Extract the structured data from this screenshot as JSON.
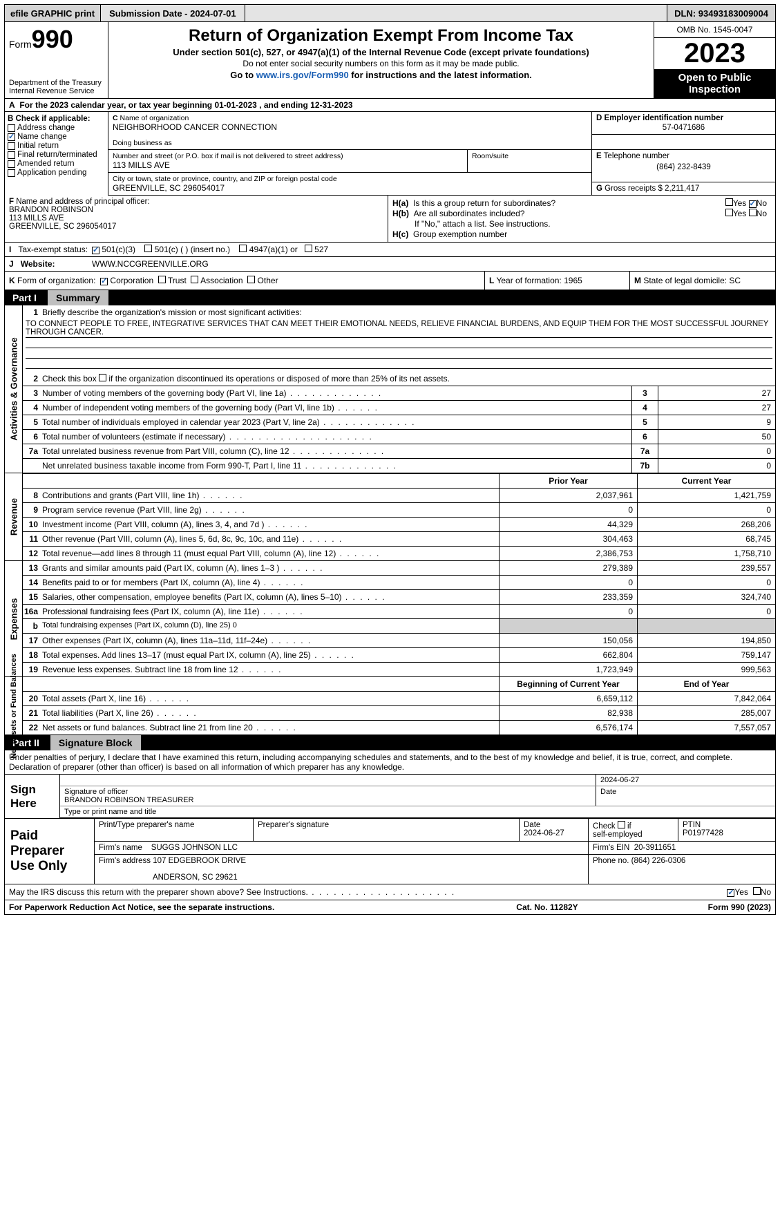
{
  "topbar": {
    "efile": "efile GRAPHIC print",
    "submission": "Submission Date - 2024-07-01",
    "dln": "DLN: 93493183009004"
  },
  "header": {
    "form_label": "Form",
    "form_num": "990",
    "dept": "Department of the Treasury",
    "irs": "Internal Revenue Service",
    "title": "Return of Organization Exempt From Income Tax",
    "sub1": "Under section 501(c), 527, or 4947(a)(1) of the Internal Revenue Code (except private foundations)",
    "sub2": "Do not enter social security numbers on this form as it may be made public.",
    "sub3_pre": "Go to ",
    "sub3_link": "www.irs.gov/Form990",
    "sub3_post": " for instructions and the latest information.",
    "omb": "OMB No. 1545-0047",
    "year": "2023",
    "otp": "Open to Public Inspection"
  },
  "A": {
    "text": "For the 2023 calendar year, or tax year beginning 01-01-2023    , and ending 12-31-2023"
  },
  "B": {
    "label": "Check if applicable:",
    "items": [
      "Address change",
      "Name change",
      "Initial return",
      "Final return/terminated",
      "Amended return",
      "Application pending"
    ]
  },
  "C": {
    "name_label": "Name of organization",
    "name": "NEIGHBORHOOD CANCER CONNECTION",
    "dba_label": "Doing business as",
    "addr_label": "Number and street (or P.O. box if mail is not delivered to street address)",
    "addr": "113 MILLS AVE",
    "room_label": "Room/suite",
    "city_label": "City or town, state or province, country, and ZIP or foreign postal code",
    "city": "GREENVILLE, SC  296054017"
  },
  "D": {
    "label": "Employer identification number",
    "val": "57-0471686"
  },
  "E": {
    "label": "Telephone number",
    "val": "(864) 232-8439"
  },
  "G": {
    "label": "Gross receipts $",
    "val": "2,211,417"
  },
  "F": {
    "label": "Name and address of principal officer:",
    "name": "BRANDON ROBINSON",
    "addr": "113 MILLS AVE",
    "city": "GREENVILLE, SC  296054017"
  },
  "H": {
    "a_label": "Is this a group return for subordinates?",
    "b_label": "Are all subordinates included?",
    "b_note": "If \"No,\" attach a list. See instructions.",
    "c_label": "Group exemption number"
  },
  "I": {
    "label": "Tax-exempt status:",
    "opts": [
      "501(c)(3)",
      "501(c) (   ) (insert no.)",
      "4947(a)(1) or",
      "527"
    ]
  },
  "J": {
    "label": "Website:",
    "val": "WWW.NCCGREENVILLE.ORG"
  },
  "K": {
    "label": "Form of organization:",
    "opts": [
      "Corporation",
      "Trust",
      "Association",
      "Other"
    ]
  },
  "L": {
    "label": "Year of formation:",
    "val": "1965"
  },
  "M": {
    "label": "State of legal domicile:",
    "val": "SC"
  },
  "part1": {
    "title": "Summary",
    "mission_label": "Briefly describe the organization's mission or most significant activities:",
    "mission": "TO CONNECT PEOPLE TO FREE, INTEGRATIVE SERVICES THAT CAN MEET THEIR EMOTIONAL NEEDS, RELIEVE FINANCIAL BURDENS, AND EQUIP THEM FOR THE MOST SUCCESSFUL JOURNEY THROUGH CANCER.",
    "l2": "Check this box         if the organization discontinued its operations or disposed of more than 25% of its net assets.",
    "l3": {
      "t": "Number of voting members of the governing body (Part VI, line 1a)",
      "v": "27"
    },
    "l4": {
      "t": "Number of independent voting members of the governing body (Part VI, line 1b)",
      "v": "27"
    },
    "l5": {
      "t": "Total number of individuals employed in calendar year 2023 (Part V, line 2a)",
      "v": "9"
    },
    "l6": {
      "t": "Total number of volunteers (estimate if necessary)",
      "v": "50"
    },
    "l7a": {
      "t": "Total unrelated business revenue from Part VIII, column (C), line 12",
      "v": "0"
    },
    "l7b": {
      "t": "Net unrelated business taxable income from Form 990-T, Part I, line 11",
      "v": "0"
    },
    "prior": "Prior Year",
    "current": "Current Year",
    "rev": [
      {
        "n": "8",
        "t": "Contributions and grants (Part VIII, line 1h)",
        "p": "2,037,961",
        "c": "1,421,759"
      },
      {
        "n": "9",
        "t": "Program service revenue (Part VIII, line 2g)",
        "p": "0",
        "c": "0"
      },
      {
        "n": "10",
        "t": "Investment income (Part VIII, column (A), lines 3, 4, and 7d )",
        "p": "44,329",
        "c": "268,206"
      },
      {
        "n": "11",
        "t": "Other revenue (Part VIII, column (A), lines 5, 6d, 8c, 9c, 10c, and 11e)",
        "p": "304,463",
        "c": "68,745"
      },
      {
        "n": "12",
        "t": "Total revenue—add lines 8 through 11 (must equal Part VIII, column (A), line 12)",
        "p": "2,386,753",
        "c": "1,758,710"
      }
    ],
    "exp": [
      {
        "n": "13",
        "t": "Grants and similar amounts paid (Part IX, column (A), lines 1–3 )",
        "p": "279,389",
        "c": "239,557"
      },
      {
        "n": "14",
        "t": "Benefits paid to or for members (Part IX, column (A), line 4)",
        "p": "0",
        "c": "0"
      },
      {
        "n": "15",
        "t": "Salaries, other compensation, employee benefits (Part IX, column (A), lines 5–10)",
        "p": "233,359",
        "c": "324,740"
      },
      {
        "n": "16a",
        "t": "Professional fundraising fees (Part IX, column (A), line 11e)",
        "p": "0",
        "c": "0"
      },
      {
        "n": "b",
        "t": "Total fundraising expenses (Part IX, column (D), line 25) 0",
        "shade": true
      },
      {
        "n": "17",
        "t": "Other expenses (Part IX, column (A), lines 11a–11d, 11f–24e)",
        "p": "150,056",
        "c": "194,850"
      },
      {
        "n": "18",
        "t": "Total expenses. Add lines 13–17 (must equal Part IX, column (A), line 25)",
        "p": "662,804",
        "c": "759,147"
      },
      {
        "n": "19",
        "t": "Revenue less expenses. Subtract line 18 from line 12",
        "p": "1,723,949",
        "c": "999,563"
      }
    ],
    "na_head": {
      "p": "Beginning of Current Year",
      "c": "End of Year"
    },
    "na": [
      {
        "n": "20",
        "t": "Total assets (Part X, line 16)",
        "p": "6,659,112",
        "c": "7,842,064"
      },
      {
        "n": "21",
        "t": "Total liabilities (Part X, line 26)",
        "p": "82,938",
        "c": "285,007"
      },
      {
        "n": "22",
        "t": "Net assets or fund balances. Subtract line 21 from line 20",
        "p": "6,576,174",
        "c": "7,557,057"
      }
    ]
  },
  "part2": {
    "title": "Signature Block",
    "decl": "Under penalties of perjury, I declare that I have examined this return, including accompanying schedules and statements, and to the best of my knowledge and belief, it is true, correct, and complete. Declaration of preparer (other than officer) is based on all information of which preparer has any knowledge.",
    "sign_here": "Sign Here",
    "sig_label": "Signature of officer",
    "sig_date": "2024-06-27",
    "officer": "BRANDON ROBINSON  TREASURER",
    "type_label": "Type or print name and title",
    "date_label": "Date",
    "paid": "Paid Preparer Use Only",
    "p_name_label": "Print/Type preparer's name",
    "p_sig_label": "Preparer's signature",
    "p_date": "2024-06-27",
    "p_check": "Check         if self-employed",
    "p_ptin_label": "PTIN",
    "p_ptin": "P01977428",
    "firm_label": "Firm's name",
    "firm": "SUGGS JOHNSON LLC",
    "firm_ein_label": "Firm's EIN",
    "firm_ein": "20-3911651",
    "firm_addr_label": "Firm's address",
    "firm_addr1": "107 EDGEBROOK DRIVE",
    "firm_addr2": "ANDERSON, SC  29621",
    "phone_label": "Phone no.",
    "phone": "(864) 226-0306",
    "irs_q": "May the IRS discuss this return with the preparer shown above? See Instructions."
  },
  "footer": {
    "l": "For Paperwork Reduction Act Notice, see the separate instructions.",
    "m": "Cat. No. 11282Y",
    "r": "Form 990 (2023)"
  },
  "side_labels": {
    "ag": "Activities & Governance",
    "rev": "Revenue",
    "exp": "Expenses",
    "na": "Net Assets or Fund Balances"
  }
}
